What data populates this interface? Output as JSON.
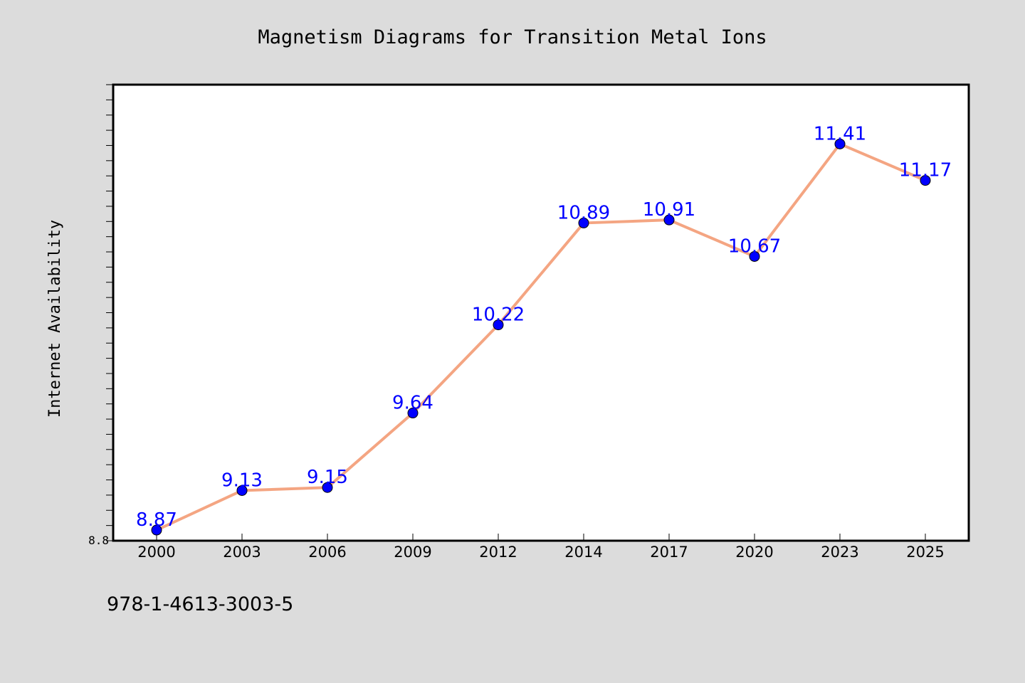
{
  "chart_data": {
    "type": "line",
    "title": "Magnetism Diagrams for Transition Metal Ions",
    "xlabel": "",
    "ylabel": "Internet Availability",
    "categories": [
      "2000",
      "2003",
      "2006",
      "2009",
      "2012",
      "2014",
      "2017",
      "2020",
      "2023",
      "2025"
    ],
    "series": [
      {
        "values": [
          8.87,
          9.13,
          9.15,
          9.64,
          10.22,
          10.89,
          10.91,
          10.67,
          11.41,
          11.17
        ]
      }
    ],
    "ylim": [
      8.8,
      11.8
    ],
    "yticks_labeled": [
      "8.8"
    ],
    "grid": false,
    "legend": "none",
    "colors": {
      "line": "#f4a582",
      "marker": "#0000ff",
      "data_label": "#0000ff",
      "background": "#dcdcdc",
      "plot_area": "#ffffff",
      "frame": "#000000"
    }
  },
  "footer": {
    "code": "978-1-4613-3003-5"
  }
}
